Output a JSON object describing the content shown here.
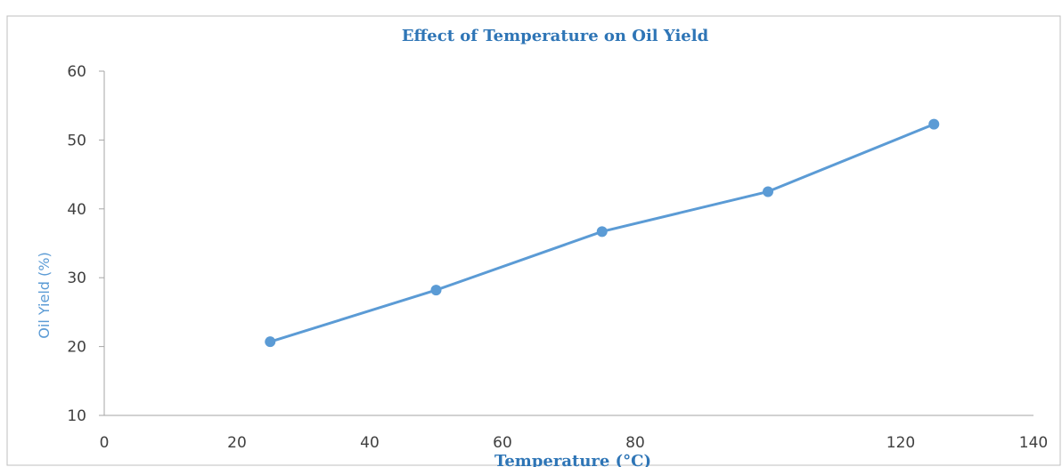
{
  "colors": {
    "series": "#5B9BD5",
    "title": "#2E75B6",
    "axis": "#A6A6A6",
    "tick_text": "#404040",
    "frame": "#BFBFBF"
  },
  "chart_data": {
    "type": "line",
    "title": "Effect of Temperature on Oil Yield",
    "xlabel": "Temperature (°C)",
    "ylabel": "Oil Yield (%)",
    "xlim": [
      0,
      140
    ],
    "ylim": [
      10,
      60
    ],
    "x_ticks": [
      0,
      20,
      40,
      60,
      80,
      120,
      140
    ],
    "y_ticks": [
      10,
      20,
      30,
      40,
      50,
      60
    ],
    "grid": false,
    "legend": "none",
    "series": [
      {
        "x": [
          25,
          50,
          75,
          100,
          125
        ],
        "y": [
          20.7,
          28.2,
          36.7,
          42.5,
          52.3
        ],
        "marker": "circle"
      }
    ]
  }
}
